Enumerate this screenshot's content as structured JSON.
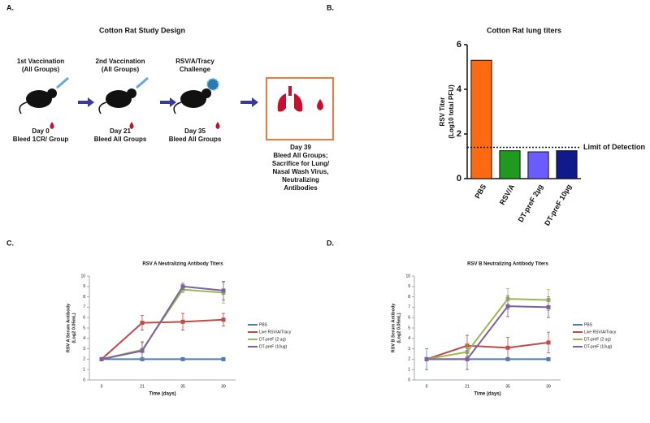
{
  "panel_labels": [
    "A.",
    "B.",
    "C.",
    "D."
  ],
  "study_design": {
    "title": "Cotton Rat Study Design",
    "stages": [
      {
        "top": [
          "1st Vaccination",
          "(All Groups)"
        ],
        "bottom": [
          "Day 0",
          "Bleed 1CR/ Group"
        ]
      },
      {
        "top": [
          "2nd Vaccination",
          "(All Groups)"
        ],
        "bottom": [
          "Day 21",
          "Bleed All Groups"
        ]
      },
      {
        "top": [
          "RSV/A/Tracy",
          "Challenge"
        ],
        "bottom": [
          "Day 35",
          "Bleed All Groups"
        ]
      },
      {
        "top": [],
        "bottom": [
          "Day 39",
          "Bleed All Groups;",
          "Sacrifice for Lung/",
          "Nasal Wash Virus,",
          "Neutralizing",
          "Antibodies"
        ]
      }
    ]
  },
  "chart_data": [
    {
      "type": "bar",
      "title": "Cotton Rat lung titers",
      "y_label": [
        "RSV Titer",
        "(Log10 total PFU)"
      ],
      "categories": [
        "PBS",
        "RSV/A",
        "DT-preF 2µg",
        "DT-preF 10µg"
      ],
      "values": [
        5.3,
        1.25,
        1.2,
        1.25
      ],
      "colors": [
        "#ff6a10",
        "#1f9a1f",
        "#6a5cff",
        "#101a8a"
      ],
      "ylim": [
        0,
        6
      ],
      "yticks": [
        0,
        2,
        4,
        6
      ],
      "lod": {
        "value": 1.4,
        "label": "Limit of Detection"
      }
    },
    {
      "type": "line",
      "title": "RSV A Neutralizing Antibody Titers",
      "y_label": [
        "RSV A Serum Antibody",
        "(Log2 0.05mL)"
      ],
      "x_label": "Time (days)",
      "categories": [
        "0",
        "21",
        "35",
        "39"
      ],
      "ylim": [
        0,
        10
      ],
      "yticks": [
        0,
        1,
        2,
        3,
        4,
        5,
        6,
        7,
        8,
        9,
        10
      ],
      "series": [
        {
          "name": "PBS",
          "color": "#4a7ebb",
          "values": [
            2,
            2,
            2,
            2
          ],
          "errors": [
            0,
            0,
            0,
            0
          ]
        },
        {
          "name": "Live RSV/A/Tracy",
          "color": "#be4b48",
          "values": [
            2,
            5.5,
            5.6,
            5.8
          ],
          "errors": [
            0,
            0.7,
            0.8,
            0.6
          ]
        },
        {
          "name": "DT-preF (2 ug)",
          "color": "#98b954",
          "values": [
            2,
            2.9,
            8.7,
            8.4
          ],
          "errors": [
            0,
            0.8,
            0.3,
            1.0
          ]
        },
        {
          "name": "DT-preF (10ug)",
          "color": "#7d60a0",
          "values": [
            2,
            2.8,
            9.0,
            8.6
          ],
          "errors": [
            0,
            0.8,
            0.3,
            0.9
          ]
        }
      ]
    },
    {
      "type": "line",
      "title": "RSV B Neutralizing Antibody Titers",
      "y_label": [
        "RSV B Serum Antibody",
        "(Log2 0.05mL)"
      ],
      "x_label": "Time (days)",
      "categories": [
        "0",
        "21",
        "35",
        "39"
      ],
      "ylim": [
        0,
        10
      ],
      "yticks": [
        0,
        1,
        2,
        3,
        4,
        5,
        6,
        7,
        8,
        9,
        10
      ],
      "series": [
        {
          "name": "PBS",
          "color": "#4a7ebb",
          "values": [
            2,
            2,
            2,
            2
          ],
          "errors": [
            1,
            0,
            0,
            0
          ]
        },
        {
          "name": "Live RSV/A/Tracy",
          "color": "#be4b48",
          "values": [
            2,
            3.3,
            3.1,
            3.6
          ],
          "errors": [
            0,
            1.0,
            1.0,
            1.0
          ]
        },
        {
          "name": "DT-preF (2 ug)",
          "color": "#98b954",
          "values": [
            2,
            2.7,
            7.8,
            7.7
          ],
          "errors": [
            0,
            0.8,
            1.0,
            1.0
          ]
        },
        {
          "name": "DT-preF (10ug)",
          "color": "#7d60a0",
          "values": [
            2,
            2,
            7.1,
            7.0
          ],
          "errors": [
            0,
            1.0,
            1.0,
            1.0
          ]
        }
      ]
    }
  ]
}
